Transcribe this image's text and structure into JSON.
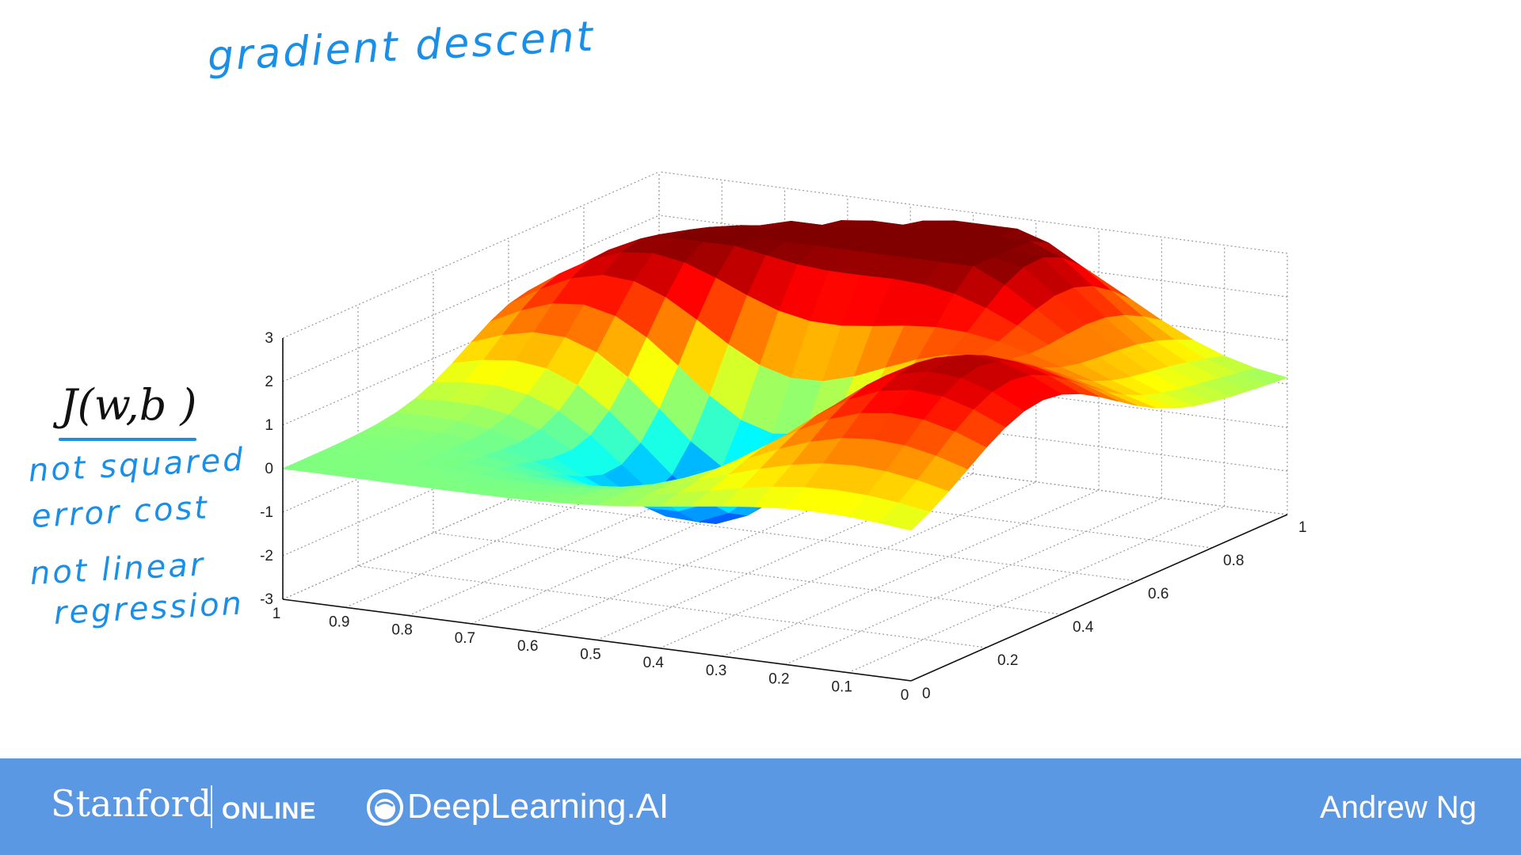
{
  "slide": {
    "title_note": "gradient descent",
    "cost_label": "J(w,b )",
    "notes": [
      "not squared",
      "error cost",
      "not linear",
      "regression"
    ]
  },
  "footer": {
    "brand_primary": "Stanford",
    "brand_secondary": "ONLINE",
    "partner": "DeepLearning.AI",
    "author": "Andrew Ng",
    "background_color": "#5b98e4"
  },
  "chart_data": {
    "type": "surface",
    "title": "",
    "xlabel": "",
    "ylabel": "",
    "zlabel": "",
    "x_ticks": [
      "0",
      "0.1",
      "0.2",
      "0.3",
      "0.4",
      "0.5",
      "0.6",
      "0.7",
      "0.8",
      "0.9",
      "1"
    ],
    "y_ticks": [
      "0",
      "0.2",
      "0.4",
      "0.6",
      "0.8",
      "1"
    ],
    "z_ticks": [
      "-3",
      "-2",
      "-1",
      "0",
      "1",
      "2",
      "3"
    ],
    "xlim": [
      0,
      1
    ],
    "ylim": [
      0,
      1
    ],
    "zlim": [
      -3,
      3
    ],
    "colormap": "jet",
    "grid": true,
    "surface": {
      "grid_resolution": 21,
      "peaks": [
        {
          "x": 0.4,
          "y": 0.85,
          "height": 3.0,
          "width": 0.17
        },
        {
          "x": 0.7,
          "y": 0.75,
          "height": 2.6,
          "width": 0.2
        },
        {
          "x": 0.15,
          "y": 0.35,
          "height": 2.8,
          "width": 0.2
        },
        {
          "x": 0.55,
          "y": 0.45,
          "height": -3.0,
          "width": 0.15
        },
        {
          "x": 0.88,
          "y": 0.62,
          "height": 1.2,
          "width": 0.15
        }
      ]
    }
  }
}
